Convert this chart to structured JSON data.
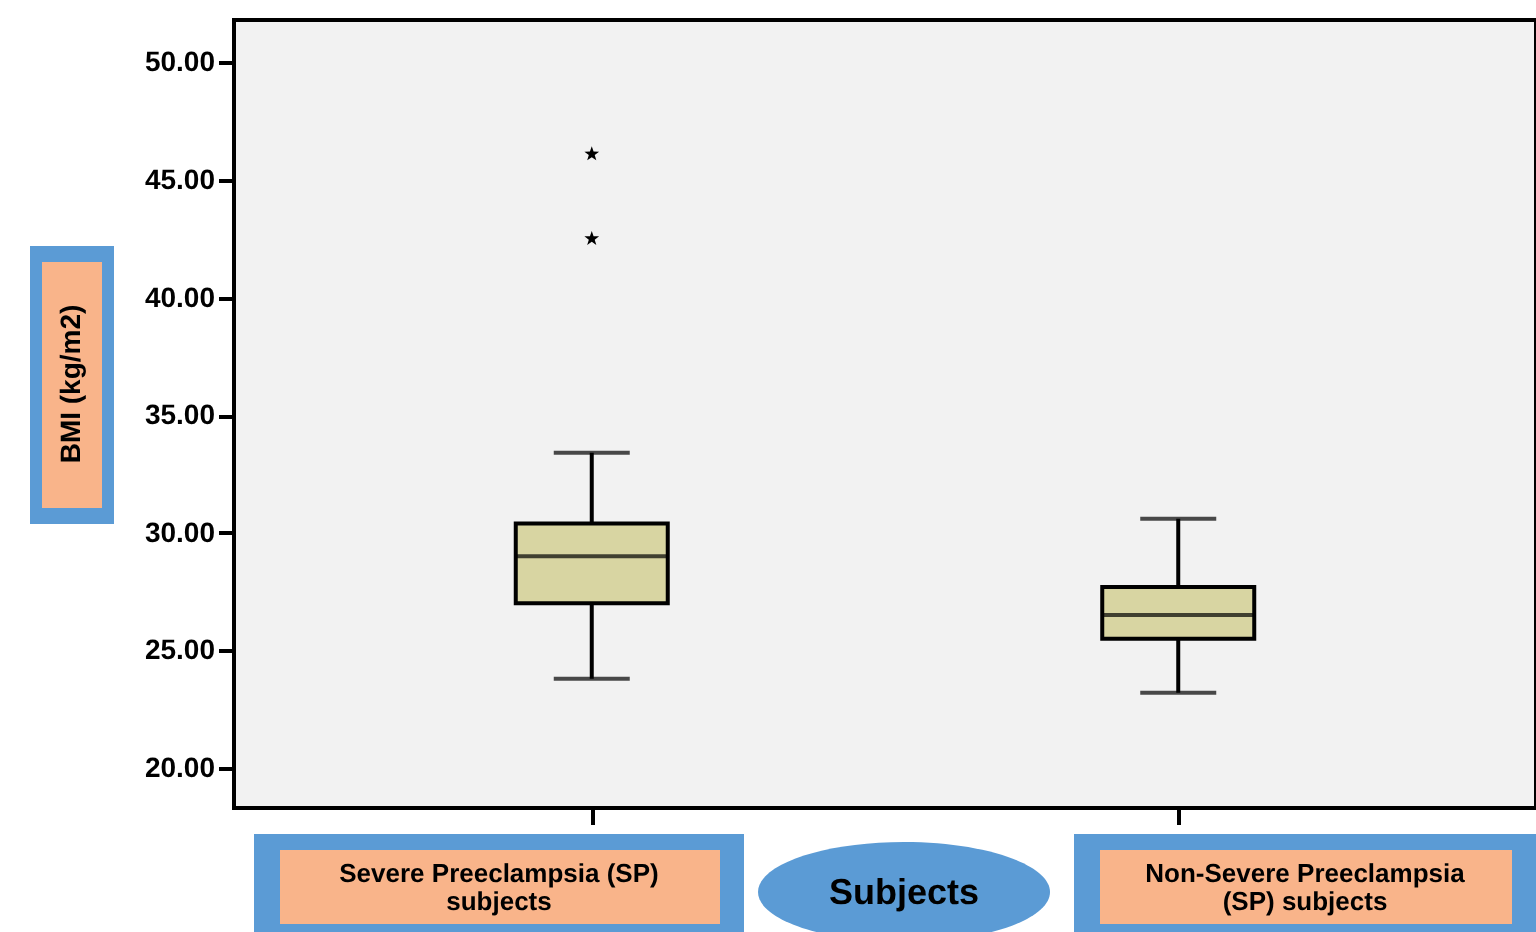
{
  "chart_data": {
    "type": "box",
    "categories": [
      "Severe Preeclampsia (SP) subjects",
      "Non-Severe Preeclampsia (SP) subjects"
    ],
    "boxes": [
      {
        "low": 23.8,
        "q1": 27.0,
        "median": 29.0,
        "q3": 30.4,
        "high": 33.4,
        "outliers": [
          42.5,
          46.1
        ]
      },
      {
        "low": 23.2,
        "q1": 25.5,
        "median": 26.5,
        "q3": 27.7,
        "high": 30.6
      }
    ],
    "color": "#d8d5a2",
    "xlabel": "Subjects",
    "ylabel": "BMI (kg/m2)",
    "ylim": [
      18.3,
      51.8
    ],
    "yticks": [
      {
        "value": 20,
        "label": "20.00"
      },
      {
        "value": 25,
        "label": "25.00"
      },
      {
        "value": 30,
        "label": "30.00"
      },
      {
        "value": 35,
        "label": "35.00"
      },
      {
        "value": 40,
        "label": "40.00"
      },
      {
        "value": 45,
        "label": "45.00"
      },
      {
        "value": 50,
        "label": "50.00"
      }
    ]
  }
}
